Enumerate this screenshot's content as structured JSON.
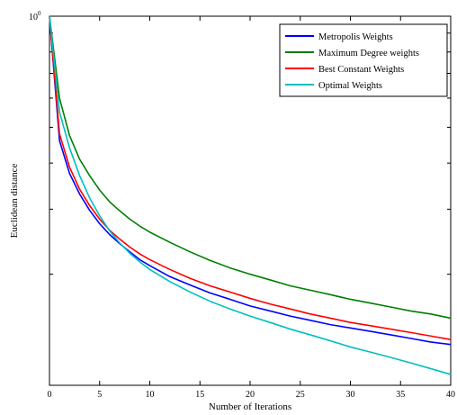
{
  "chart_data": {
    "type": "line",
    "title": "",
    "xlabel": "Number of Iterations",
    "ylabel": "Euclidean distance",
    "xlim": [
      0,
      40
    ],
    "ylim_log": [
      0.1,
      1
    ],
    "y_scale": "log",
    "grid": false,
    "legend_position": "top-right",
    "x_ticks": [
      0,
      5,
      10,
      15,
      20,
      25,
      30,
      35,
      40
    ],
    "y_tick_label": {
      "base": "10",
      "exponent": "0"
    },
    "series": [
      {
        "name": "Metropolis Weights",
        "color": "#0000ff",
        "x": [
          0,
          1,
          2,
          3,
          4,
          5,
          6,
          7,
          8,
          9,
          10,
          12,
          14,
          16,
          18,
          20,
          22,
          24,
          26,
          28,
          30,
          32,
          34,
          36,
          38,
          40
        ],
        "y": [
          1.0,
          0.46,
          0.375,
          0.33,
          0.298,
          0.274,
          0.256,
          0.242,
          0.23,
          0.219,
          0.211,
          0.197,
          0.187,
          0.178,
          0.171,
          0.164,
          0.159,
          0.154,
          0.15,
          0.146,
          0.143,
          0.14,
          0.137,
          0.134,
          0.131,
          0.129
        ]
      },
      {
        "name": "Maximum Degree weights",
        "color": "#007f00",
        "x": [
          0,
          1,
          2,
          3,
          4,
          5,
          6,
          7,
          8,
          9,
          10,
          12,
          14,
          16,
          18,
          20,
          22,
          24,
          26,
          28,
          30,
          32,
          34,
          36,
          38,
          40
        ],
        "y": [
          1.0,
          0.6,
          0.475,
          0.41,
          0.37,
          0.338,
          0.314,
          0.297,
          0.282,
          0.27,
          0.26,
          0.244,
          0.23,
          0.218,
          0.208,
          0.2,
          0.193,
          0.186,
          0.181,
          0.176,
          0.171,
          0.167,
          0.163,
          0.159,
          0.156,
          0.152
        ]
      },
      {
        "name": "Best Constant Weights",
        "color": "#ff0000",
        "x": [
          0,
          1,
          2,
          3,
          4,
          5,
          6,
          7,
          8,
          9,
          10,
          12,
          14,
          16,
          18,
          20,
          22,
          24,
          26,
          28,
          30,
          32,
          34,
          36,
          38,
          40
        ],
        "y": [
          1.0,
          0.48,
          0.39,
          0.34,
          0.307,
          0.282,
          0.263,
          0.249,
          0.237,
          0.227,
          0.219,
          0.206,
          0.195,
          0.186,
          0.179,
          0.172,
          0.166,
          0.161,
          0.156,
          0.152,
          0.148,
          0.145,
          0.142,
          0.139,
          0.136,
          0.133
        ]
      },
      {
        "name": "Optimal Weights",
        "color": "#00bfbf",
        "x": [
          0,
          1,
          2,
          3,
          4,
          5,
          6,
          7,
          8,
          9,
          10,
          12,
          14,
          16,
          18,
          20,
          22,
          24,
          26,
          28,
          30,
          32,
          34,
          36,
          38,
          40
        ],
        "y": [
          1.0,
          0.55,
          0.44,
          0.37,
          0.322,
          0.288,
          0.262,
          0.243,
          0.228,
          0.216,
          0.206,
          0.191,
          0.179,
          0.169,
          0.161,
          0.154,
          0.148,
          0.142,
          0.137,
          0.132,
          0.127,
          0.123,
          0.119,
          0.115,
          0.111,
          0.107
        ]
      }
    ]
  }
}
